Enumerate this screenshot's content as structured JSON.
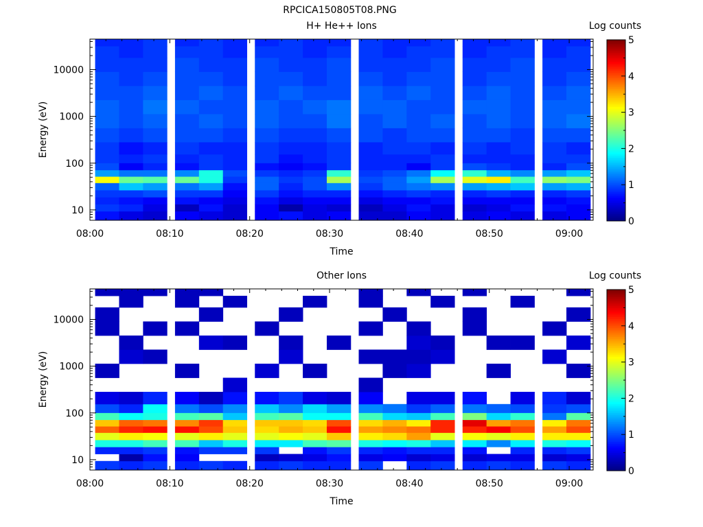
{
  "figure_title": "RPCICA150805T08.PNG",
  "colormap": [
    "#00007f",
    "#0000ff",
    "#007fff",
    "#00ffff",
    "#7fff7f",
    "#ffff00",
    "#ff7f00",
    "#ff0000",
    "#7f0000"
  ],
  "chart_data": [
    {
      "type": "heatmap",
      "title": "H+ He++ Ions",
      "xlabel": "Time",
      "ylabel": "Energy (eV)",
      "x_ticks": [
        "08:00",
        "08:10",
        "08:20",
        "08:30",
        "08:40",
        "08:50",
        "09:00"
      ],
      "x_range": [
        "08:00",
        "09:03"
      ],
      "y_scale": "log",
      "y_ticks": [
        "10",
        "100",
        "1000",
        "10000"
      ],
      "y_range": [
        6,
        45000
      ],
      "colorbar_label": "Log counts",
      "colorbar_ticks": [
        "0",
        "1",
        "2",
        "3",
        "4",
        "5"
      ],
      "colorbar_range": [
        0,
        5
      ],
      "time_bins": [
        "08:02",
        "08:05",
        "08:08",
        "08:12",
        "08:15",
        "08:18",
        "08:22",
        "08:25",
        "08:28",
        "08:31",
        "08:35",
        "08:38",
        "08:41",
        "08:44",
        "08:48",
        "08:51",
        "08:54",
        "08:58",
        "09:01"
      ],
      "energy_bins_eV": [
        8,
        11,
        16,
        22,
        32,
        45,
        60,
        85,
        120,
        200,
        400,
        800,
        1600,
        3200,
        6400,
        12800,
        25600,
        40000
      ],
      "log_counts": [
        [
          0.7,
          0.5,
          0.4,
          0.6,
          0.5,
          0.4,
          0.6,
          0.7,
          0.5,
          0.6,
          0.4,
          0.4,
          0.6,
          0.5,
          0.5,
          0.6,
          0.5,
          0.5,
          0.6
        ],
        [
          0.9,
          0.8,
          0.5,
          0.3,
          0.7,
          0.4,
          0.6,
          0.2,
          0.5,
          0.4,
          0.3,
          0.5,
          0.7,
          0.5,
          0.4,
          0.5,
          0.7,
          0.7,
          0.6
        ],
        [
          0.8,
          0.7,
          0.6,
          0.7,
          0.6,
          0.5,
          0.7,
          0.5,
          0.6,
          0.6,
          0.5,
          0.6,
          0.6,
          0.7,
          0.6,
          0.6,
          0.6,
          0.6,
          0.7
        ],
        [
          0.9,
          0.9,
          1.0,
          0.9,
          0.9,
          0.6,
          0.9,
          0.7,
          0.8,
          0.8,
          0.7,
          0.8,
          0.9,
          0.8,
          0.8,
          0.9,
          0.8,
          0.8,
          0.9
        ],
        [
          1.1,
          1.6,
          1.4,
          1.2,
          1.4,
          0.7,
          1.1,
          0.8,
          1.0,
          1.3,
          0.9,
          1.1,
          1.2,
          1.3,
          1.4,
          1.5,
          1.6,
          1.4,
          1.5
        ],
        [
          3.1,
          2.4,
          2.3,
          2.4,
          2.0,
          0.9,
          1.1,
          0.9,
          1.0,
          2.7,
          1.0,
          1.1,
          1.4,
          2.7,
          3.0,
          3.2,
          2.2,
          2.6,
          2.5
        ],
        [
          1.4,
          1.2,
          1.2,
          1.3,
          2.0,
          1.0,
          0.9,
          0.8,
          0.9,
          2.1,
          0.9,
          1.0,
          1.2,
          1.9,
          2.1,
          1.5,
          1.3,
          1.4,
          1.6
        ],
        [
          1.0,
          0.6,
          0.8,
          0.7,
          0.9,
          0.8,
          0.7,
          0.6,
          0.7,
          0.9,
          0.8,
          0.8,
          0.6,
          0.9,
          1.0,
          0.9,
          0.8,
          0.8,
          1.0
        ],
        [
          0.9,
          0.8,
          0.9,
          0.8,
          0.9,
          0.8,
          0.9,
          0.7,
          0.8,
          0.9,
          0.8,
          0.8,
          0.8,
          0.9,
          0.8,
          0.8,
          0.8,
          0.9,
          0.9
        ],
        [
          0.9,
          0.7,
          0.8,
          0.9,
          0.8,
          0.8,
          0.9,
          0.8,
          0.8,
          0.9,
          0.8,
          0.9,
          0.9,
          0.8,
          0.9,
          0.8,
          0.9,
          0.9,
          0.8
        ],
        [
          1.0,
          0.9,
          1.0,
          1.0,
          1.0,
          0.9,
          1.0,
          0.9,
          0.9,
          1.0,
          1.0,
          0.9,
          1.0,
          1.0,
          1.0,
          1.0,
          0.9,
          1.0,
          1.0
        ],
        [
          1.1,
          1.0,
          1.1,
          1.0,
          1.1,
          1.0,
          1.1,
          1.0,
          1.0,
          1.2,
          1.0,
          1.1,
          1.0,
          1.1,
          1.0,
          1.1,
          1.0,
          1.1,
          1.2
        ],
        [
          1.1,
          1.0,
          1.2,
          1.1,
          1.0,
          1.0,
          1.1,
          1.0,
          1.1,
          1.2,
          1.1,
          1.1,
          1.0,
          1.0,
          1.1,
          1.1,
          1.0,
          1.1,
          1.1
        ],
        [
          1.0,
          1.0,
          1.1,
          1.0,
          1.1,
          1.0,
          1.0,
          1.1,
          1.0,
          1.0,
          1.1,
          1.0,
          1.1,
          1.0,
          1.0,
          1.1,
          1.0,
          1.0,
          1.1
        ],
        [
          1.0,
          0.9,
          1.0,
          1.0,
          1.0,
          0.9,
          1.0,
          1.0,
          0.9,
          1.0,
          1.0,
          0.9,
          1.0,
          1.0,
          0.9,
          1.0,
          1.0,
          0.9,
          1.0
        ],
        [
          0.9,
          0.9,
          0.9,
          1.0,
          0.9,
          0.9,
          1.0,
          0.9,
          0.9,
          1.0,
          0.9,
          0.9,
          0.9,
          1.0,
          0.9,
          0.9,
          1.0,
          0.9,
          0.9
        ],
        [
          0.9,
          0.8,
          0.9,
          0.9,
          0.9,
          0.8,
          0.9,
          0.9,
          0.8,
          0.9,
          0.9,
          0.8,
          0.9,
          0.9,
          0.8,
          0.9,
          0.9,
          0.8,
          0.9
        ],
        [
          0.8,
          0.8,
          0.9,
          0.8,
          0.9,
          0.8,
          0.8,
          0.9,
          0.8,
          0.8,
          0.9,
          0.8,
          0.8,
          0.9,
          0.8,
          0.8,
          0.9,
          0.8,
          0.8
        ]
      ]
    },
    {
      "type": "heatmap",
      "title": "Other Ions",
      "xlabel": "Time",
      "ylabel": "Energy (eV)",
      "x_ticks": [
        "08:00",
        "08:10",
        "08:20",
        "08:30",
        "08:40",
        "08:50",
        "09:00"
      ],
      "x_range": [
        "08:00",
        "09:03"
      ],
      "y_scale": "log",
      "y_ticks": [
        "10",
        "100",
        "1000",
        "10000"
      ],
      "y_range": [
        6,
        45000
      ],
      "colorbar_label": "Log counts",
      "colorbar_ticks": [
        "0",
        "1",
        "2",
        "3",
        "4",
        "5"
      ],
      "colorbar_range": [
        0,
        5
      ],
      "time_bins": [
        "08:02",
        "08:05",
        "08:08",
        "08:12",
        "08:15",
        "08:18",
        "08:22",
        "08:25",
        "08:28",
        "08:31",
        "08:35",
        "08:38",
        "08:41",
        "08:44",
        "08:48",
        "08:51",
        "08:54",
        "08:58",
        "09:01"
      ],
      "energy_bins_eV": [
        8,
        11,
        16,
        22,
        32,
        45,
        60,
        85,
        120,
        200,
        400,
        800,
        1600,
        3200,
        6400,
        12800,
        25600,
        40000
      ],
      "log_counts": [
        [
          0.9,
          0.8,
          0.9,
          0.8,
          0.9,
          0.8,
          0.8,
          0.9,
          0.8,
          0.8,
          0.9,
          null,
          0.8,
          0.9,
          0.8,
          0.9,
          0.8,
          0.9,
          0.8
        ],
        [
          null,
          0.2,
          0.7,
          0.6,
          null,
          null,
          0.3,
          0.4,
          0.5,
          0.7,
          0.5,
          0.6,
          0.4,
          0.5,
          0.4,
          0.5,
          0.5,
          0.4,
          0.5
        ],
        [
          0.8,
          0.8,
          0.9,
          0.7,
          0.9,
          0.9,
          0.9,
          null,
          0.7,
          0.9,
          0.8,
          0.7,
          0.8,
          0.8,
          0.7,
          null,
          0.8,
          0.8,
          0.9
        ],
        [
          2.0,
          2.0,
          2.2,
          2.2,
          1.6,
          2.0,
          1.8,
          1.8,
          2.2,
          2.3,
          2.0,
          1.9,
          2.0,
          1.6,
          1.8,
          1.3,
          1.8,
          2.0,
          1.9
        ],
        [
          3.0,
          3.2,
          3.1,
          3.0,
          3.2,
          3.0,
          3.0,
          3.1,
          3.0,
          3.4,
          3.2,
          3.3,
          3.6,
          3.0,
          3.1,
          3.0,
          3.2,
          3.2,
          3.2
        ],
        [
          3.9,
          4.2,
          4.3,
          4.3,
          4.0,
          3.4,
          3.3,
          3.5,
          3.4,
          4.3,
          3.6,
          3.7,
          3.8,
          4.2,
          4.2,
          4.4,
          4.0,
          3.6,
          4.0
        ],
        [
          3.4,
          3.9,
          3.8,
          3.7,
          4.1,
          3.3,
          3.4,
          3.4,
          3.3,
          4.0,
          3.3,
          3.5,
          3.2,
          4.2,
          4.5,
          3.6,
          3.8,
          3.2,
          3.8
        ],
        [
          2.2,
          1.9,
          2.0,
          2.2,
          2.3,
          1.6,
          2.2,
          2.3,
          1.9,
          1.9,
          2.2,
          1.7,
          1.6,
          2.2,
          2.5,
          1.7,
          2.1,
          1.2,
          2.3
        ],
        [
          1.0,
          0.8,
          1.9,
          1.2,
          1.0,
          1.3,
          1.6,
          1.3,
          1.7,
          1.4,
          1.3,
          1.2,
          0.9,
          1.1,
          1.2,
          1.1,
          1.0,
          0.9,
          1.0
        ],
        [
          0.5,
          0.4,
          0.8,
          0.6,
          0.3,
          0.7,
          0.7,
          0.9,
          0.5,
          0.4,
          0.6,
          null,
          0.5,
          0.5,
          0.7,
          null,
          0.5,
          0.8,
          0.4
        ],
        [
          null,
          null,
          null,
          null,
          null,
          0.4,
          null,
          null,
          null,
          null,
          0.3,
          null,
          null,
          null,
          null,
          null,
          null,
          null,
          null
        ],
        [
          0.3,
          null,
          null,
          0.3,
          null,
          null,
          0.4,
          null,
          0.3,
          null,
          null,
          0.3,
          0.4,
          null,
          null,
          0.3,
          null,
          null,
          0.3
        ],
        [
          null,
          0.4,
          0.3,
          null,
          null,
          null,
          null,
          0.4,
          null,
          null,
          0.3,
          0.3,
          0.3,
          0.4,
          null,
          null,
          null,
          0.4,
          null
        ],
        [
          null,
          0.3,
          null,
          null,
          0.4,
          0.3,
          null,
          0.3,
          null,
          0.3,
          null,
          null,
          0.4,
          0.3,
          null,
          0.3,
          0.3,
          null,
          0.4
        ],
        [
          0.3,
          null,
          0.3,
          0.3,
          null,
          null,
          0.3,
          null,
          null,
          null,
          0.3,
          null,
          0.3,
          null,
          0.3,
          null,
          null,
          0.3,
          null
        ],
        [
          0.3,
          null,
          null,
          null,
          0.3,
          null,
          null,
          0.3,
          null,
          null,
          null,
          0.3,
          null,
          null,
          0.3,
          null,
          null,
          null,
          0.3
        ],
        [
          null,
          0.3,
          null,
          0.3,
          null,
          0.3,
          null,
          null,
          0.3,
          null,
          0.3,
          null,
          null,
          0.3,
          null,
          null,
          0.3,
          null,
          null
        ],
        [
          0.3,
          0.3,
          0.3,
          0.3,
          0.3,
          null,
          null,
          null,
          null,
          null,
          0.3,
          null,
          0.3,
          null,
          0.3,
          null,
          null,
          null,
          0.3
        ]
      ]
    }
  ]
}
